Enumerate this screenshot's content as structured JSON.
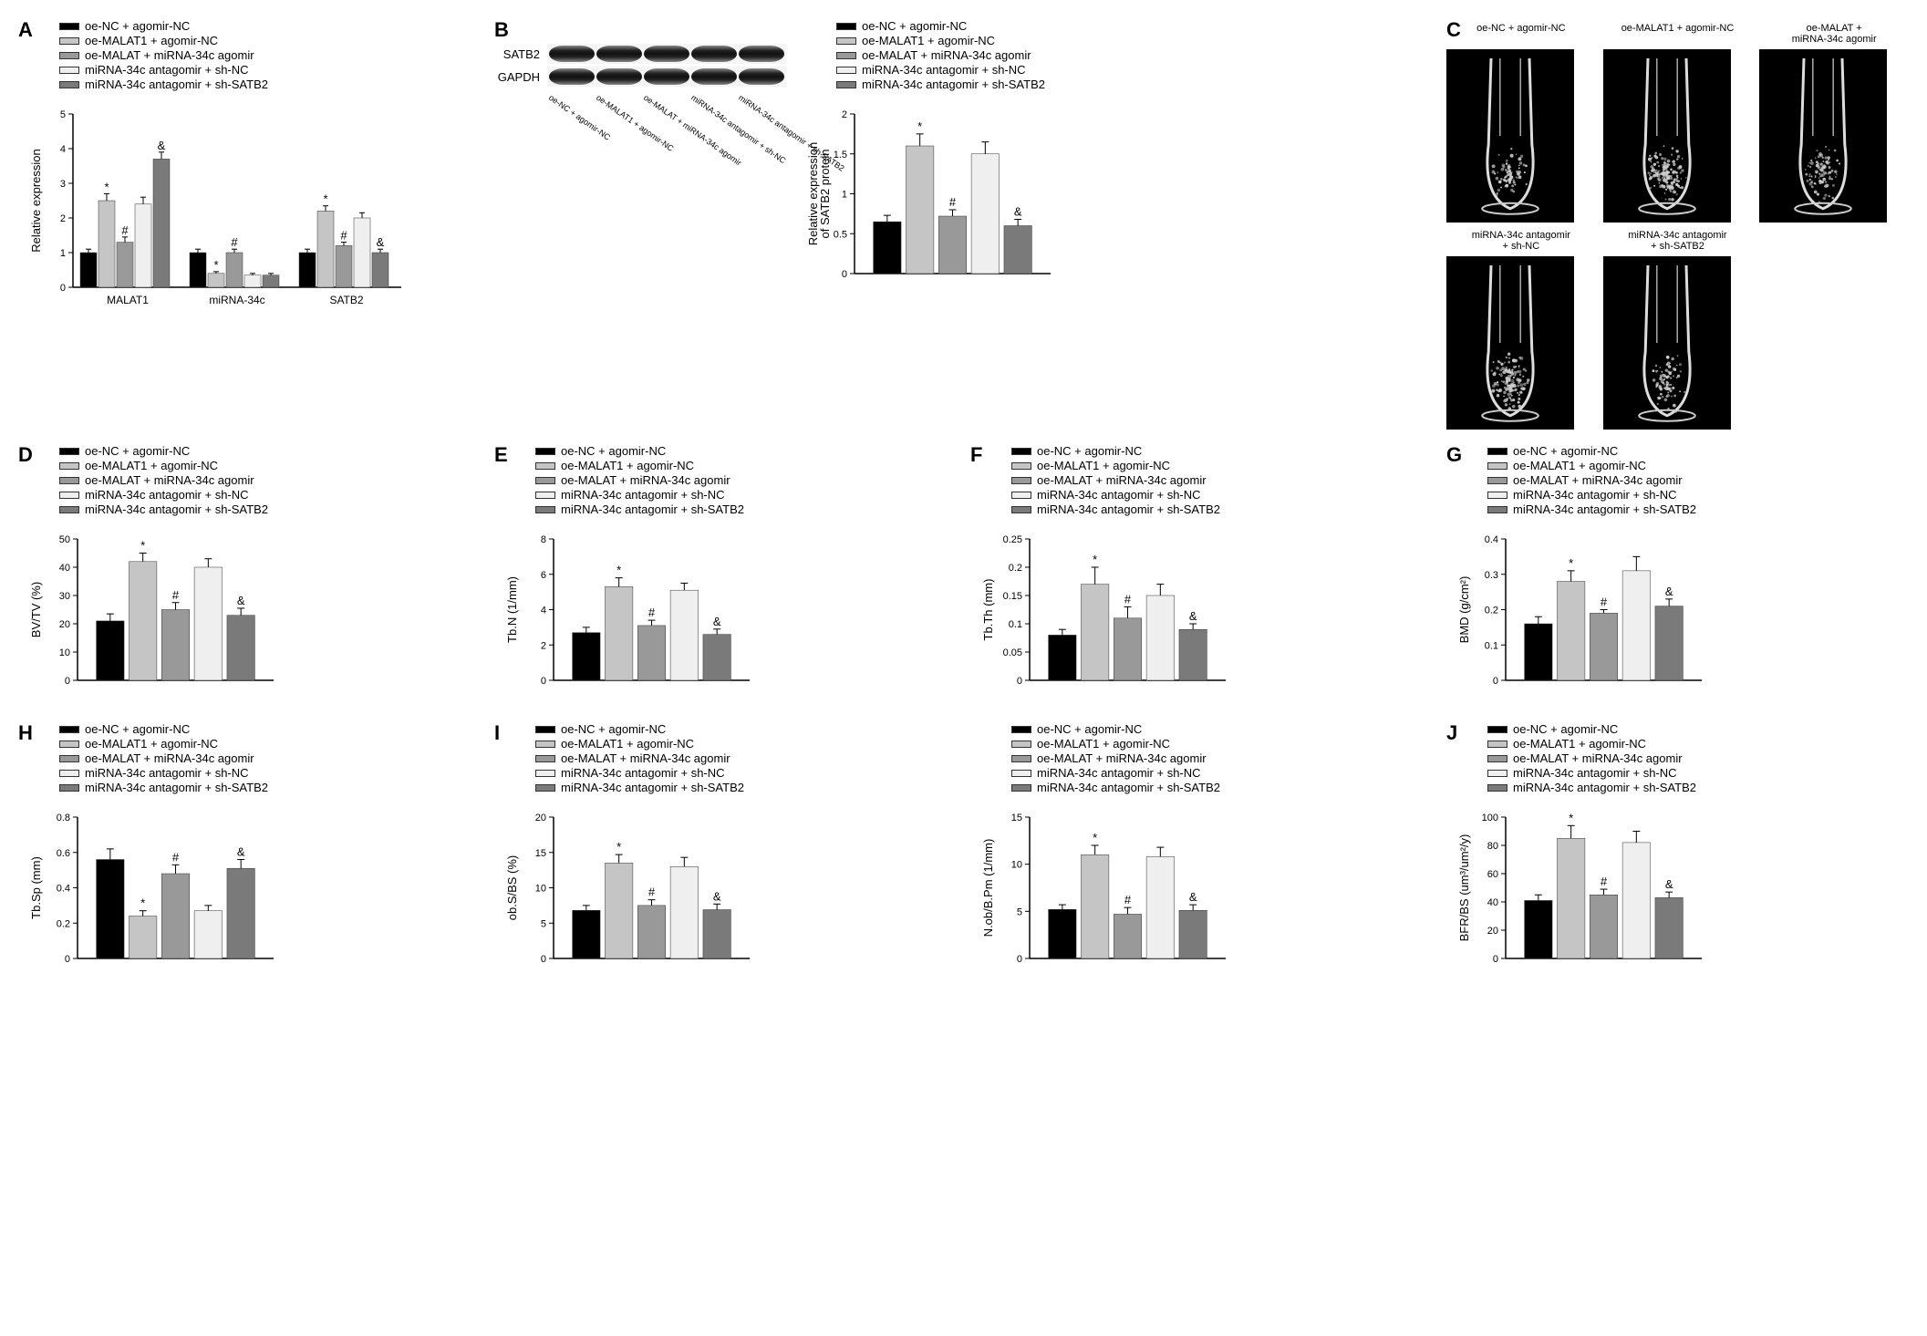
{
  "groups": [
    "oe-NC + agomir-NC",
    "oe-MALAT1 + agomir-NC",
    "oe-MALAT + miRNA-34c agomir",
    "miRNA-34c antagomir + sh-NC",
    "miRNA-34c antagomir + sh-SATB2"
  ],
  "colors": [
    "#000000",
    "#c5c5c5",
    "#999999",
    "#efefef",
    "#7a7a7a"
  ],
  "sig_markers": [
    "",
    "*",
    "#",
    "",
    "&"
  ],
  "panel_A": {
    "label": "A",
    "ylabel": "Relative expression",
    "ymax": 5,
    "ytick": 1,
    "categories": [
      "MALAT1",
      "miRNA-34c",
      "SATB2"
    ],
    "data": [
      {
        "values": [
          1.0,
          2.5,
          1.3,
          2.4,
          3.7
        ],
        "errors": [
          0.1,
          0.2,
          0.15,
          0.2,
          0.2
        ],
        "sigs": [
          "",
          "*",
          "#",
          "",
          "&"
        ]
      },
      {
        "values": [
          1.0,
          0.4,
          1.0,
          0.35,
          0.35
        ],
        "errors": [
          0.1,
          0.05,
          0.1,
          0.05,
          0.05
        ],
        "sigs": [
          "",
          "*",
          "#",
          "",
          ""
        ]
      },
      {
        "values": [
          1.0,
          2.2,
          1.2,
          2.0,
          1.0
        ],
        "errors": [
          0.1,
          0.15,
          0.1,
          0.15,
          0.1
        ],
        "sigs": [
          "",
          "*",
          "#",
          "",
          "&"
        ]
      }
    ]
  },
  "panel_B": {
    "label": "B",
    "wb_proteins": [
      "SATB2",
      "GAPDH"
    ],
    "ylabel": "Relative expression\nof SATB2 protein",
    "ymax": 2.0,
    "ytick": 0.5,
    "values": [
      0.65,
      1.6,
      0.72,
      1.5,
      0.6
    ],
    "errors": [
      0.08,
      0.15,
      0.08,
      0.15,
      0.08
    ],
    "sigs": [
      "",
      "*",
      "#",
      "",
      "&"
    ]
  },
  "panel_C": {
    "label": "C",
    "titles": [
      "oe-NC + agomir-NC",
      "oe-MALAT1 + agomir-NC",
      "oe-MALAT +\nmiRNA-34c agomir",
      "miRNA-34c antagomir\n+ sh-NC",
      "miRNA-34c antagomir\n+ sh-SATB2"
    ]
  },
  "bottom_panels": [
    {
      "label": "D",
      "ylabel": "BV/TV (%)",
      "ymax": 50,
      "ytick": 10,
      "values": [
        21,
        42,
        25,
        40,
        23
      ],
      "errors": [
        2.5,
        3,
        2.5,
        3,
        2.5
      ],
      "sigs": [
        "",
        "*",
        "#",
        "",
        "&"
      ]
    },
    {
      "label": "E",
      "ylabel": "Tb.N (1/mm)",
      "ymax": 8,
      "ytick": 2,
      "values": [
        2.7,
        5.3,
        3.1,
        5.1,
        2.6
      ],
      "errors": [
        0.3,
        0.5,
        0.3,
        0.4,
        0.3
      ],
      "sigs": [
        "",
        "*",
        "#",
        "",
        "&"
      ]
    },
    {
      "label": "F",
      "ylabel": "Tb.Th (mm)",
      "ymax": 0.25,
      "ytick": 0.05,
      "values": [
        0.08,
        0.17,
        0.11,
        0.15,
        0.09
      ],
      "errors": [
        0.01,
        0.03,
        0.02,
        0.02,
        0.01
      ],
      "sigs": [
        "",
        "*",
        "#",
        "",
        "&"
      ]
    },
    {
      "label": "G",
      "ylabel": "BMD (g/cm²)",
      "ymax": 0.4,
      "ytick": 0.1,
      "values": [
        0.16,
        0.28,
        0.19,
        0.31,
        0.21
      ],
      "errors": [
        0.02,
        0.03,
        0.01,
        0.04,
        0.02
      ],
      "sigs": [
        "",
        "*",
        "#",
        "",
        "&"
      ]
    },
    {
      "label": "H",
      "ylabel": "Tb.Sp (mm)",
      "ymax": 0.8,
      "ytick": 0.2,
      "values": [
        0.56,
        0.24,
        0.48,
        0.27,
        0.51
      ],
      "errors": [
        0.06,
        0.03,
        0.05,
        0.03,
        0.05
      ],
      "sigs": [
        "",
        "*",
        "#",
        "",
        "&"
      ]
    },
    {
      "label": "I",
      "ylabel": "ob.S/BS (%)",
      "ymax": 20,
      "ytick": 5,
      "values": [
        6.8,
        13.5,
        7.5,
        13.0,
        6.9
      ],
      "errors": [
        0.7,
        1.2,
        0.8,
        1.3,
        0.8
      ],
      "sigs": [
        "",
        "*",
        "#",
        "",
        "&"
      ]
    },
    {
      "label": "I2",
      "display_label": "",
      "ylabel": "N.ob/B.Pm (1/mm)",
      "ymax": 15,
      "ytick": 5,
      "values": [
        5.2,
        11.0,
        4.7,
        10.8,
        5.1
      ],
      "errors": [
        0.5,
        1.0,
        0.7,
        1.0,
        0.6
      ],
      "sigs": [
        "",
        "*",
        "#",
        "",
        "&"
      ]
    },
    {
      "label": "J",
      "ylabel": "BFR/BS (um³/um²/y)",
      "ymax": 100,
      "ytick": 20,
      "values": [
        41,
        85,
        45,
        82,
        43
      ],
      "errors": [
        4,
        9,
        4,
        8,
        4
      ],
      "sigs": [
        "",
        "*",
        "#",
        "",
        "&"
      ]
    }
  ],
  "style": {
    "axis_color": "#000000",
    "axis_width": 1.5,
    "font_size_axis": 13,
    "font_size_tick": 11
  }
}
